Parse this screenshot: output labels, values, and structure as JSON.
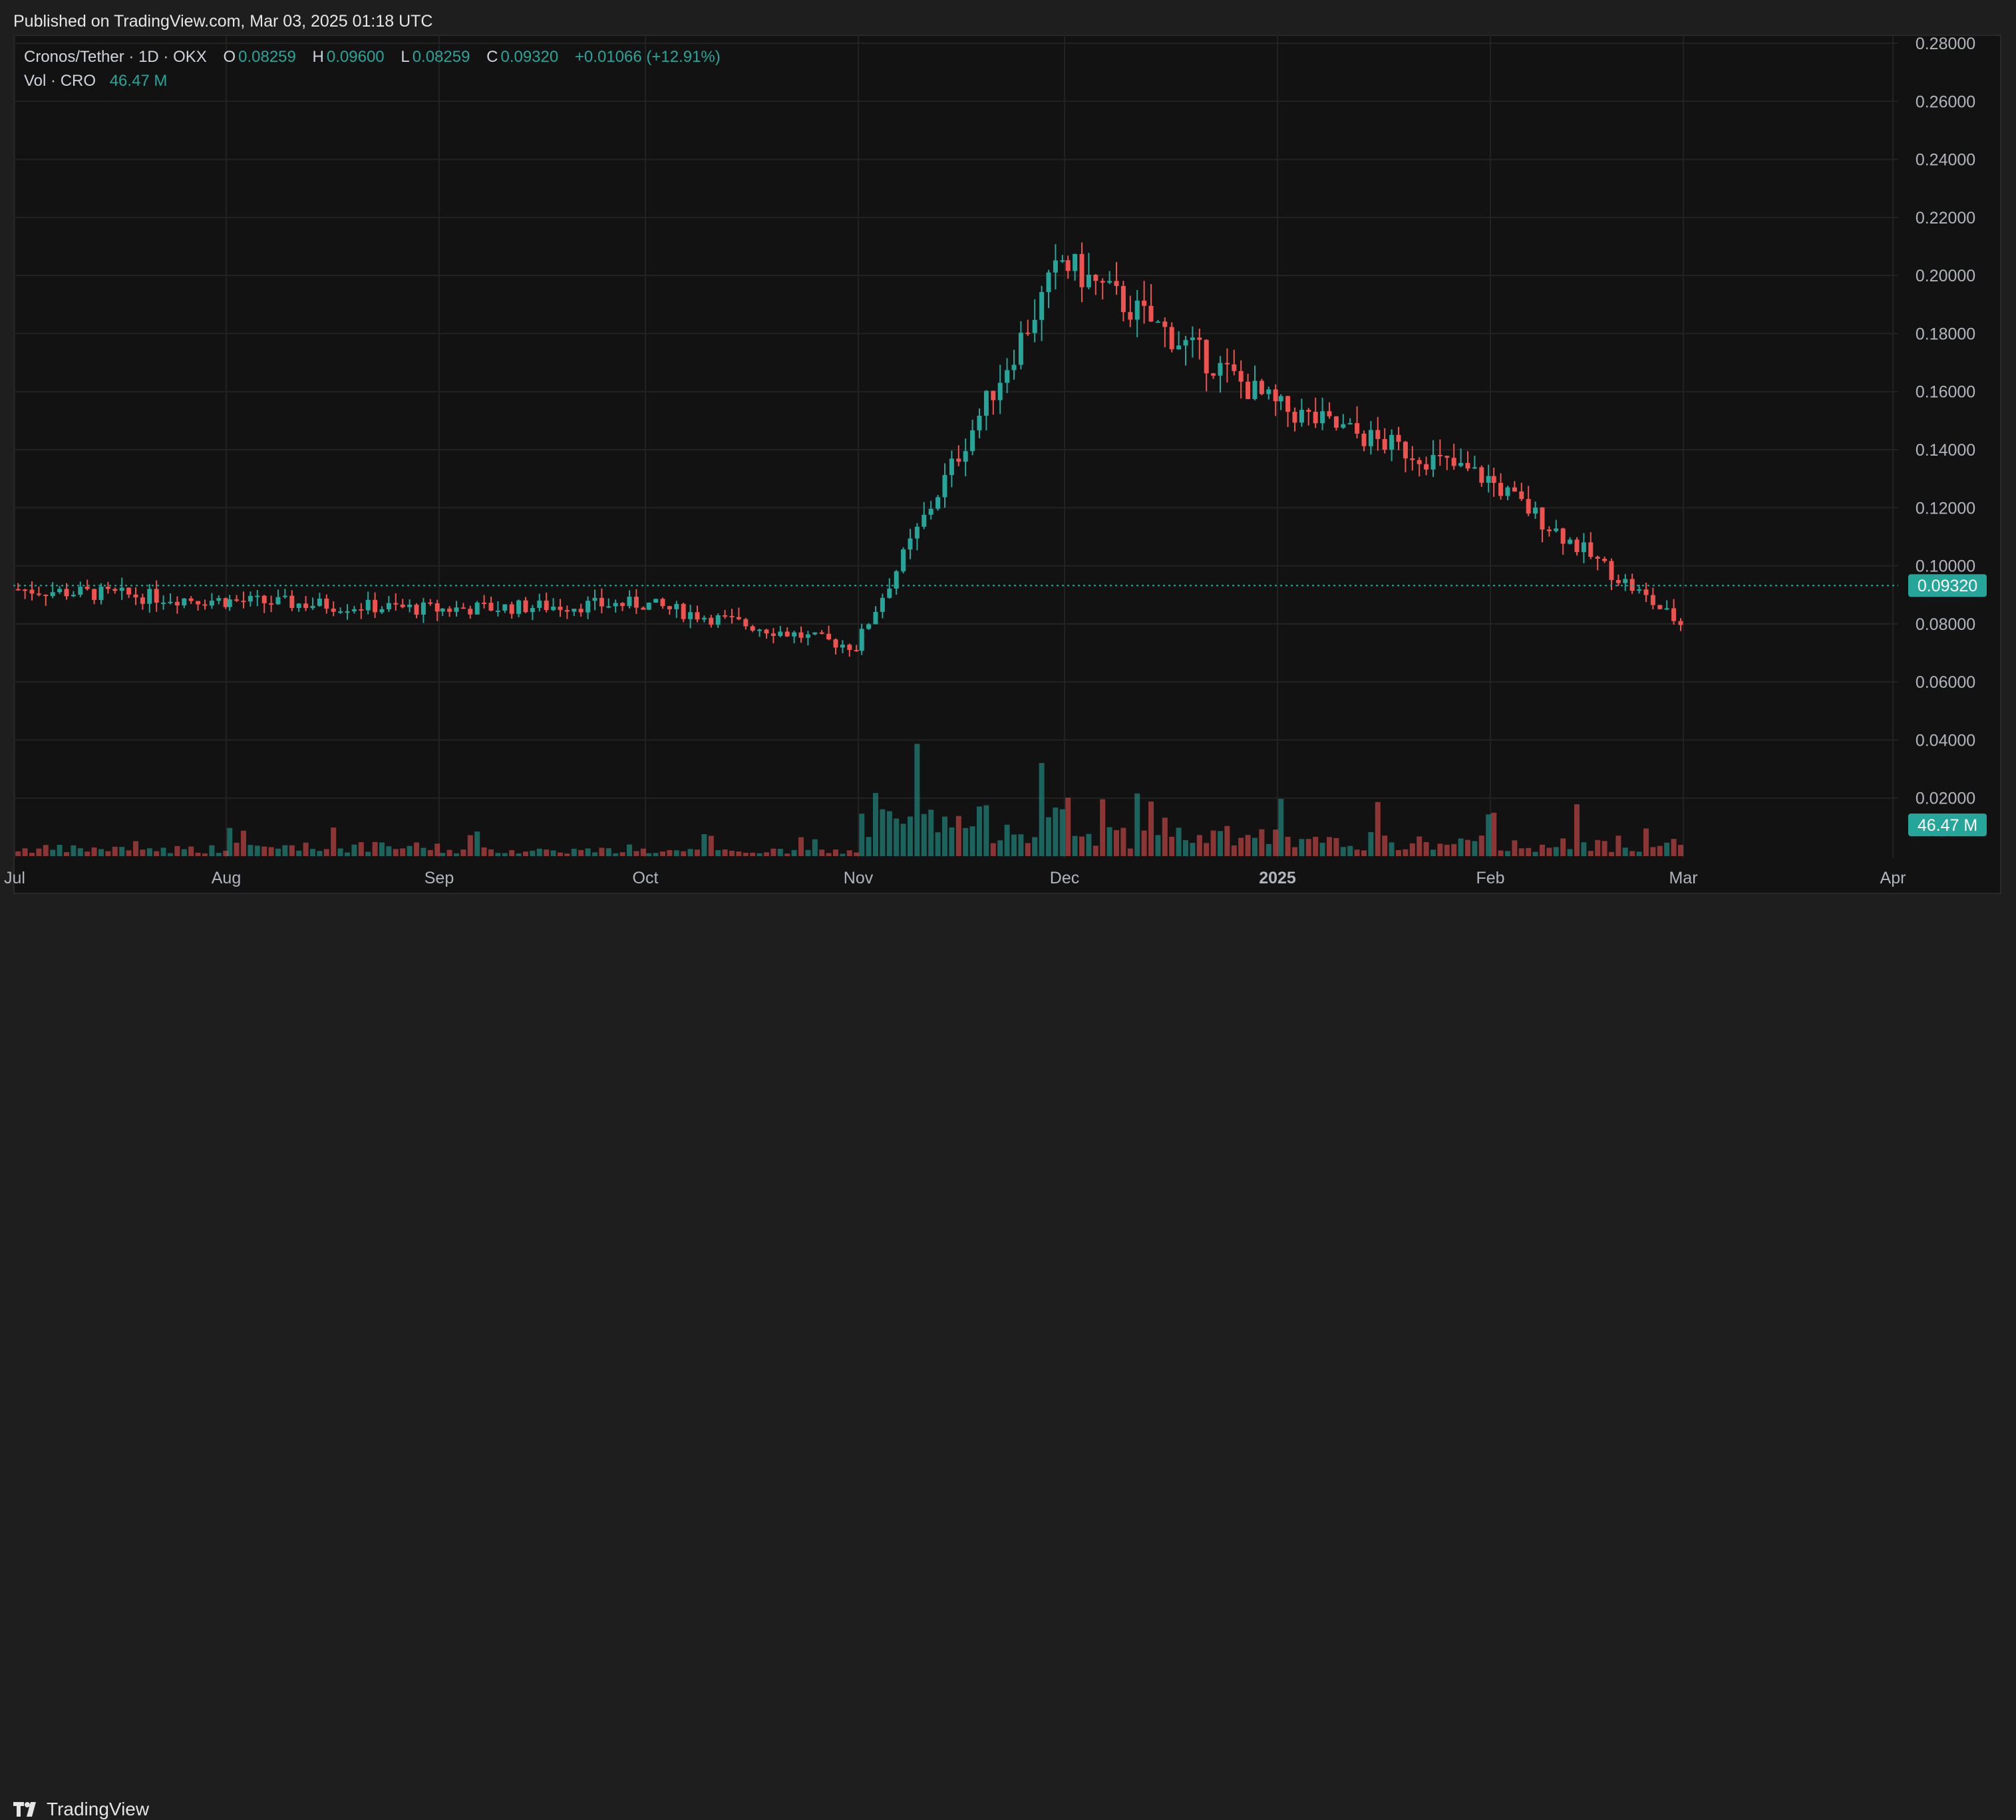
{
  "header": {
    "published": "Published on TradingView.com, Mar 03, 2025 01:18 UTC"
  },
  "legend": {
    "symbol": "Cronos/Tether · 1D · OKX",
    "open_label": "O",
    "open": "0.08259",
    "high_label": "H",
    "high": "0.09600",
    "low_label": "L",
    "low": "0.08259",
    "close_label": "C",
    "close": "0.09320",
    "change": "+0.01066 (+12.91%)",
    "vol_label": "Vol · CRO",
    "vol_value": "46.47 M"
  },
  "footer": {
    "brand": "TradingView"
  },
  "colors": {
    "up": "#26a69a",
    "down": "#ef5350",
    "grid": "#222222",
    "axis_text": "#b2b5be",
    "bg": "#121212"
  },
  "chart_data": {
    "type": "candlestick",
    "yticks": [
      "0.28000",
      "0.26000",
      "0.24000",
      "0.22000",
      "0.20000",
      "0.18000",
      "0.16000",
      "0.14000",
      "0.12000",
      "0.10000",
      "0.08000",
      "0.06000",
      "0.04000",
      "0.02000"
    ],
    "ylim": [
      0.0,
      0.28
    ],
    "x_ticks": [
      "Jul",
      "Aug",
      "Sep",
      "Oct",
      "Nov",
      "Dec",
      "2025",
      "Feb",
      "Mar",
      "Apr"
    ],
    "last_price_label": "0.09320",
    "last_price": 0.0932,
    "volume_label": "46.47 M",
    "segments": [
      {
        "from": "Jul",
        "to": "Aug",
        "start": 0.092,
        "end": 0.088,
        "vol": 0.22
      },
      {
        "from": "Aug",
        "to": "Sep",
        "start": 0.088,
        "end": 0.085,
        "vol": 0.28
      },
      {
        "from": "Sep",
        "to": "Oct",
        "start": 0.085,
        "end": 0.087,
        "vol": 0.18
      },
      {
        "from": "Oct",
        "to": "Nov",
        "start": 0.087,
        "end": 0.072,
        "vol": 0.15
      },
      {
        "from": "Nov",
        "to": "Dec",
        "start": 0.072,
        "end": 0.205,
        "vol": 1.0
      },
      {
        "from": "Dec",
        "to": "2025",
        "start": 0.205,
        "end": 0.155,
        "vol": 0.6
      },
      {
        "from": "2025",
        "to": "Feb",
        "start": 0.155,
        "end": 0.13,
        "vol": 0.4
      },
      {
        "from": "Feb",
        "to": "Mar",
        "start": 0.13,
        "end": 0.08,
        "vol": 0.35
      }
    ]
  }
}
